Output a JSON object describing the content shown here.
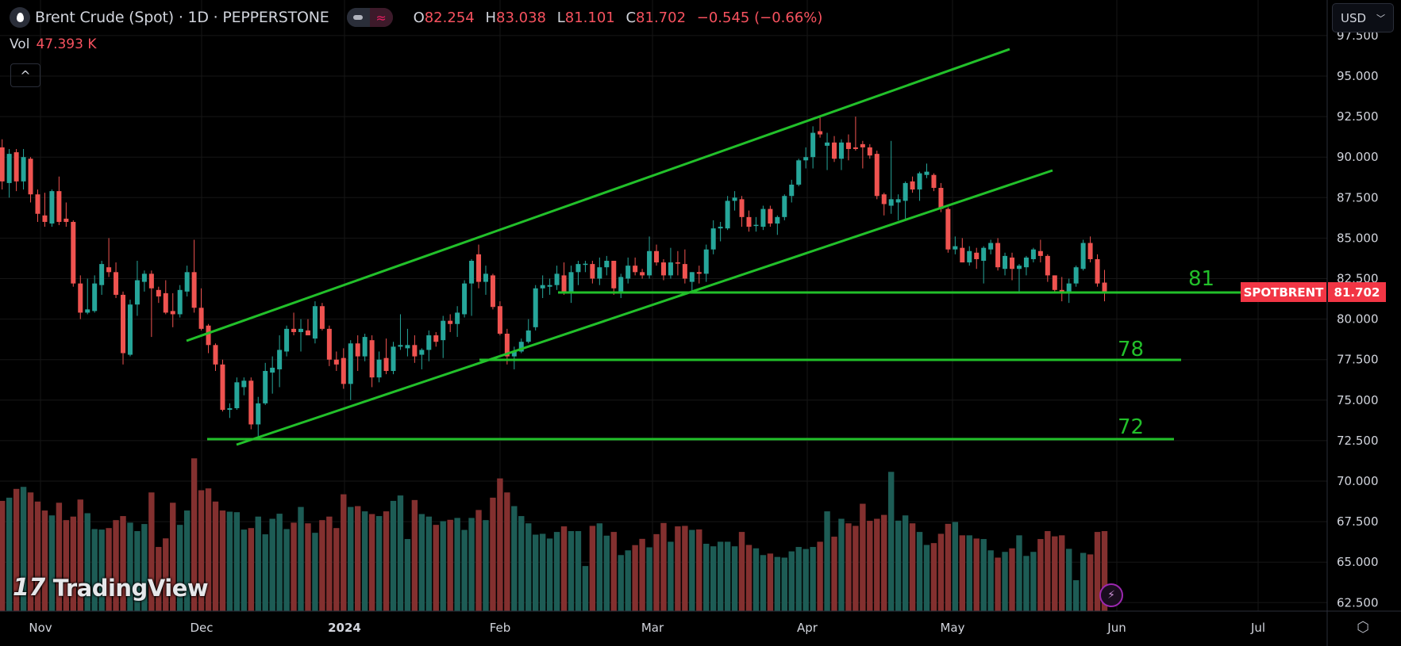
{
  "header": {
    "symbol_title": "Brent Crude (Spot) · 1D · PEPPERSTONE",
    "symbol_icon": "oil-drop-icon",
    "ohlc": {
      "o_label": "O",
      "o": "82.254",
      "h_label": "H",
      "h": "83.038",
      "l_label": "L",
      "l": "81.101",
      "c_label": "C",
      "c": "81.702",
      "change": "−0.545 (−0.66%)"
    },
    "volume_label": "Vol",
    "volume_value": "47.393 K",
    "collapse_icon": "chevron-up-icon"
  },
  "currency": "USD",
  "price_tag": {
    "symbol": "SPOTBRENT",
    "price": "81.702",
    "color": "#f23645"
  },
  "level_labels": [
    "81",
    "78",
    "72"
  ],
  "branding": "TradingView",
  "colors": {
    "up": "#26a69a",
    "down": "#ef5350",
    "vol_up": "#1d5c55",
    "vol_down": "#83302f",
    "drawing": "#22c02a"
  },
  "chart_data": {
    "type": "candlestick",
    "title": "Brent Crude (Spot) · 1D · PEPPERSTONE",
    "x_tick_labels": [
      "Nov",
      "Dec",
      "2024",
      "Feb",
      "Mar",
      "Apr",
      "May",
      "Jun",
      "Jul"
    ],
    "y_tick_labels": [
      "97.500",
      "95.000",
      "92.500",
      "90.000",
      "87.500",
      "85.000",
      "82.500",
      "80.000",
      "77.500",
      "75.000",
      "72.500",
      "70.000",
      "67.500",
      "65.000",
      "62.500"
    ],
    "ylim": [
      62.5,
      97.5
    ],
    "grid": true,
    "ohlc_fields": [
      "open",
      "high",
      "low",
      "close"
    ],
    "candles": [
      [
        90.6,
        91.1,
        88.0,
        88.5
      ],
      [
        88.4,
        90.5,
        87.5,
        90.2
      ],
      [
        90.3,
        90.5,
        87.9,
        88.5
      ],
      [
        88.5,
        90.5,
        88.0,
        90.0
      ],
      [
        89.9,
        90.0,
        87.2,
        87.7
      ],
      [
        87.7,
        88.0,
        86.0,
        86.5
      ],
      [
        86.4,
        87.8,
        85.7,
        86.0
      ],
      [
        85.9,
        88.0,
        85.7,
        87.9
      ],
      [
        87.9,
        88.8,
        85.8,
        86.0
      ],
      [
        86.2,
        87.2,
        85.7,
        86.0
      ],
      [
        86.0,
        86.1,
        82.0,
        82.2
      ],
      [
        82.2,
        82.7,
        80.0,
        80.4
      ],
      [
        80.4,
        82.5,
        80.3,
        80.6
      ],
      [
        80.5,
        82.7,
        80.4,
        82.2
      ],
      [
        82.1,
        83.6,
        81.5,
        83.4
      ],
      [
        83.2,
        85.0,
        82.6,
        82.9
      ],
      [
        82.9,
        83.5,
        81.3,
        81.5
      ],
      [
        81.5,
        81.7,
        77.2,
        77.9
      ],
      [
        77.8,
        81.2,
        77.7,
        80.9
      ],
      [
        80.9,
        83.6,
        80.2,
        82.4
      ],
      [
        82.3,
        83.0,
        81.7,
        82.8
      ],
      [
        82.8,
        83.0,
        78.9,
        81.9
      ],
      [
        81.8,
        82.0,
        81.0,
        81.4
      ],
      [
        81.6,
        82.4,
        80.3,
        80.4
      ],
      [
        80.5,
        81.6,
        79.5,
        80.3
      ],
      [
        80.3,
        82.1,
        80.1,
        81.8
      ],
      [
        81.7,
        83.3,
        81.4,
        82.9
      ],
      [
        82.9,
        84.9,
        80.4,
        80.7
      ],
      [
        80.7,
        81.9,
        79.3,
        79.4
      ],
      [
        79.6,
        79.7,
        77.9,
        78.4
      ],
      [
        78.4,
        78.5,
        76.8,
        77.2
      ],
      [
        77.2,
        77.5,
        74.3,
        74.4
      ],
      [
        74.4,
        74.8,
        73.9,
        74.5
      ],
      [
        74.5,
        76.4,
        74.4,
        76.1
      ],
      [
        75.8,
        76.4,
        75.3,
        76.2
      ],
      [
        76.2,
        76.4,
        73.2,
        73.5
      ],
      [
        73.5,
        75.2,
        72.7,
        74.8
      ],
      [
        74.8,
        77.3,
        74.7,
        76.8
      ],
      [
        76.7,
        77.7,
        75.4,
        77.0
      ],
      [
        76.9,
        79.0,
        75.8,
        78.1
      ],
      [
        78.0,
        79.6,
        77.7,
        79.4
      ],
      [
        79.4,
        80.4,
        79.0,
        79.2
      ],
      [
        79.2,
        80.0,
        78.0,
        79.4
      ],
      [
        79.3,
        80.0,
        79.0,
        79.0
      ],
      [
        78.8,
        81.1,
        78.5,
        80.8
      ],
      [
        80.8,
        81.0,
        79.3,
        79.4
      ],
      [
        79.4,
        79.6,
        77.1,
        77.5
      ],
      [
        77.5,
        78.0,
        76.8,
        77.2
      ],
      [
        77.6,
        78.2,
        75.7,
        76.0
      ],
      [
        76.0,
        78.7,
        75.0,
        78.5
      ],
      [
        78.5,
        79.0,
        76.8,
        77.7
      ],
      [
        77.7,
        79.1,
        77.4,
        78.9
      ],
      [
        78.7,
        79.0,
        75.8,
        76.4
      ],
      [
        76.4,
        78.0,
        76.1,
        77.5
      ],
      [
        77.6,
        78.8,
        76.6,
        76.8
      ],
      [
        76.8,
        78.6,
        76.6,
        78.3
      ],
      [
        78.3,
        80.3,
        78.1,
        78.4
      ],
      [
        78.2,
        79.4,
        77.7,
        78.4
      ],
      [
        78.4,
        79.0,
        77.3,
        77.7
      ],
      [
        77.8,
        78.2,
        76.9,
        78.1
      ],
      [
        78.1,
        79.3,
        77.4,
        79.0
      ],
      [
        79.0,
        79.2,
        78.3,
        78.6
      ],
      [
        78.7,
        80.2,
        77.6,
        79.9
      ],
      [
        79.9,
        80.3,
        79.2,
        79.7
      ],
      [
        79.7,
        80.8,
        78.9,
        80.4
      ],
      [
        80.3,
        82.4,
        80.1,
        82.2
      ],
      [
        82.2,
        83.7,
        80.2,
        83.6
      ],
      [
        84.0,
        84.6,
        81.9,
        82.3
      ],
      [
        82.3,
        83.3,
        81.5,
        82.8
      ],
      [
        82.7,
        82.8,
        80.6,
        80.75
      ],
      [
        80.8,
        81.1,
        79.0,
        79.1
      ],
      [
        79.1,
        79.4,
        77.2,
        77.7
      ],
      [
        77.7,
        78.3,
        76.9,
        78.0
      ],
      [
        78.0,
        78.8,
        77.9,
        78.6
      ],
      [
        78.6,
        80.0,
        78.5,
        79.3
      ],
      [
        79.5,
        82.1,
        79.3,
        81.9
      ],
      [
        81.9,
        82.7,
        81.3,
        82.1
      ],
      [
        82.0,
        82.5,
        81.5,
        82.1
      ],
      [
        82.1,
        83.3,
        81.8,
        82.8
      ],
      [
        82.7,
        83.5,
        81.5,
        81.6
      ],
      [
        81.6,
        83.3,
        81.0,
        82.9
      ],
      [
        82.9,
        83.6,
        82.1,
        83.4
      ],
      [
        83.4,
        83.6,
        82.9,
        83.42
      ],
      [
        83.4,
        83.6,
        82.2,
        82.5
      ],
      [
        82.5,
        83.8,
        82.1,
        83.2
      ],
      [
        83.2,
        83.9,
        82.7,
        83.6
      ],
      [
        83.6,
        83.6,
        81.5,
        81.9
      ],
      [
        81.6,
        82.8,
        81.3,
        82.6
      ],
      [
        82.5,
        83.8,
        82.2,
        83.3
      ],
      [
        83.3,
        83.8,
        82.7,
        82.9
      ],
      [
        82.9,
        83.1,
        82.5,
        82.7
      ],
      [
        82.7,
        85.1,
        82.5,
        84.2
      ],
      [
        84.2,
        84.6,
        83.3,
        83.5
      ],
      [
        83.5,
        83.7,
        82.4,
        82.7
      ],
      [
        82.7,
        84.4,
        82.5,
        83.5
      ],
      [
        83.5,
        84.2,
        82.7,
        83.48
      ],
      [
        83.4,
        84.3,
        82.2,
        82.5
      ],
      [
        82.3,
        82.9,
        81.7,
        82.9
      ],
      [
        82.9,
        83.3,
        82.2,
        82.8
      ],
      [
        82.8,
        84.6,
        82.3,
        84.3
      ],
      [
        84.3,
        86.1,
        84.0,
        85.6
      ],
      [
        85.6,
        86.0,
        84.8,
        85.7
      ],
      [
        85.6,
        87.6,
        85.5,
        87.3
      ],
      [
        87.3,
        87.9,
        86.7,
        87.5
      ],
      [
        87.4,
        87.6,
        85.7,
        86.3
      ],
      [
        86.3,
        86.7,
        85.4,
        85.7
      ],
      [
        85.8,
        86.3,
        85.4,
        85.82
      ],
      [
        85.7,
        87.0,
        85.5,
        86.8
      ],
      [
        86.8,
        87.0,
        85.7,
        85.9
      ],
      [
        85.9,
        86.4,
        85.2,
        86.3
      ],
      [
        86.3,
        87.7,
        86.1,
        87.6
      ],
      [
        87.6,
        88.6,
        87.2,
        88.3
      ],
      [
        88.3,
        89.9,
        88.2,
        89.8
      ],
      [
        89.8,
        90.6,
        89.3,
        90.0
      ],
      [
        90.0,
        91.9,
        89.3,
        91.5
      ],
      [
        91.6,
        92.5,
        91.2,
        91.4
      ],
      [
        90.7,
        91.5,
        89.2,
        90.9
      ],
      [
        90.9,
        91.3,
        89.7,
        89.9
      ],
      [
        89.9,
        91.1,
        89.2,
        90.9
      ],
      [
        90.9,
        91.4,
        89.8,
        90.5
      ],
      [
        90.6,
        92.5,
        90.4,
        90.5
      ],
      [
        90.8,
        91.0,
        89.3,
        90.6
      ],
      [
        90.6,
        90.8,
        89.9,
        90.1
      ],
      [
        90.2,
        90.4,
        87.4,
        87.6
      ],
      [
        87.7,
        87.8,
        86.4,
        87.1
      ],
      [
        87.0,
        91.0,
        86.5,
        87.4
      ],
      [
        87.2,
        87.7,
        86.1,
        87.4
      ],
      [
        87.3,
        88.5,
        86.2,
        88.4
      ],
      [
        88.5,
        88.8,
        87.8,
        88.0
      ],
      [
        88.0,
        89.1,
        87.3,
        89.0
      ],
      [
        88.9,
        89.6,
        88.7,
        89.1
      ],
      [
        88.9,
        89.0,
        87.9,
        88.1
      ],
      [
        88.1,
        88.4,
        86.6,
        86.8
      ],
      [
        86.8,
        86.9,
        84.1,
        84.3
      ],
      [
        84.3,
        85.1,
        84.0,
        84.5
      ],
      [
        84.4,
        85.0,
        83.5,
        83.5
      ],
      [
        83.5,
        84.5,
        83.3,
        84.2
      ],
      [
        84.1,
        84.4,
        83.1,
        83.7
      ],
      [
        83.6,
        84.5,
        82.2,
        84.4
      ],
      [
        84.3,
        84.9,
        84.0,
        84.7
      ],
      [
        84.7,
        85.0,
        83.0,
        83.2
      ],
      [
        83.1,
        84.1,
        82.7,
        83.9
      ],
      [
        83.8,
        84.1,
        82.4,
        83.1
      ],
      [
        83.1,
        83.4,
        81.7,
        83.3
      ],
      [
        83.2,
        83.9,
        82.7,
        83.8
      ],
      [
        83.7,
        84.4,
        83.5,
        84.3
      ],
      [
        84.2,
        84.9,
        83.5,
        83.9
      ],
      [
        83.9,
        84.0,
        82.3,
        82.7
      ],
      [
        82.7,
        82.7,
        81.6,
        81.8
      ],
      [
        81.8,
        82.6,
        81.1,
        81.6
      ],
      [
        81.6,
        82.5,
        81.0,
        82.2
      ],
      [
        82.2,
        83.3,
        82.0,
        83.2
      ],
      [
        83.1,
        84.9,
        83.0,
        84.7
      ],
      [
        84.7,
        85.1,
        83.5,
        83.7
      ],
      [
        83.7,
        84.0,
        82.0,
        82.2
      ],
      [
        82.254,
        83.038,
        81.101,
        81.702
      ]
    ],
    "volume_unit": "K",
    "volume": [
      65.3,
      67.2,
      72.4,
      73.6,
      70.3,
      64.9,
      59.6,
      56.7,
      64.2,
      53.9,
      56.0,
      66.1,
      58.0,
      48.6,
      48.3,
      49.2,
      53.9,
      56.3,
      52.4,
      47.4,
      51.6,
      70.3,
      38.0,
      43.1,
      64.2,
      51.1,
      59.6,
      90.5,
      71.6,
      72.7,
      64.9,
      59.6,
      58.9,
      58.6,
      48.3,
      49.2,
      56.0,
      45.5,
      54.7,
      57.7,
      48.6,
      52.4,
      61.7,
      52.0,
      46.4,
      53.9,
      56.0,
      49.2,
      69.2,
      61.7,
      62.2,
      59.1,
      57.5,
      56.3,
      59.1,
      65.3,
      68.5,
      42.7,
      65.8,
      57.5,
      56.0,
      51.1,
      53.3,
      54.1,
      55.2,
      48.1,
      55.2,
      59.9,
      53.9,
      67.2,
      78.6,
      70.3,
      62.2,
      56.3,
      52.0,
      45.3,
      45.8,
      43.0,
      46.9,
      50.2,
      47.4,
      47.4,
      26.7,
      50.5,
      52.0,
      44.7,
      46.9,
      33.2,
      36.0,
      39.1,
      42.8,
      37.8,
      45.6,
      52.2,
      41.1,
      50.2,
      50.5,
      48.1,
      48.4,
      39.9,
      38.4,
      41.1,
      41.1,
      38.4,
      46.9,
      39.2,
      37.2,
      33.2,
      34.1,
      32.1,
      31.7,
      35.4,
      38.0,
      36.8,
      38.0,
      41.1,
      59.1,
      44.1,
      54.7,
      52.0,
      50.5,
      63.6,
      53.5,
      54.7,
      57.0,
      82.5,
      53.6,
      56.7,
      52.0,
      46.9,
      39.2,
      40.3,
      45.8,
      51.7,
      52.8,
      44.9,
      44.9,
      43.0,
      42.7,
      36.0,
      31.7,
      35.1,
      37.2,
      44.9,
      32.7,
      35.1,
      42.7,
      47.4,
      44.3,
      44.9,
      36.9,
      18.3,
      34.5,
      33.6,
      46.9,
      47.393
    ]
  }
}
